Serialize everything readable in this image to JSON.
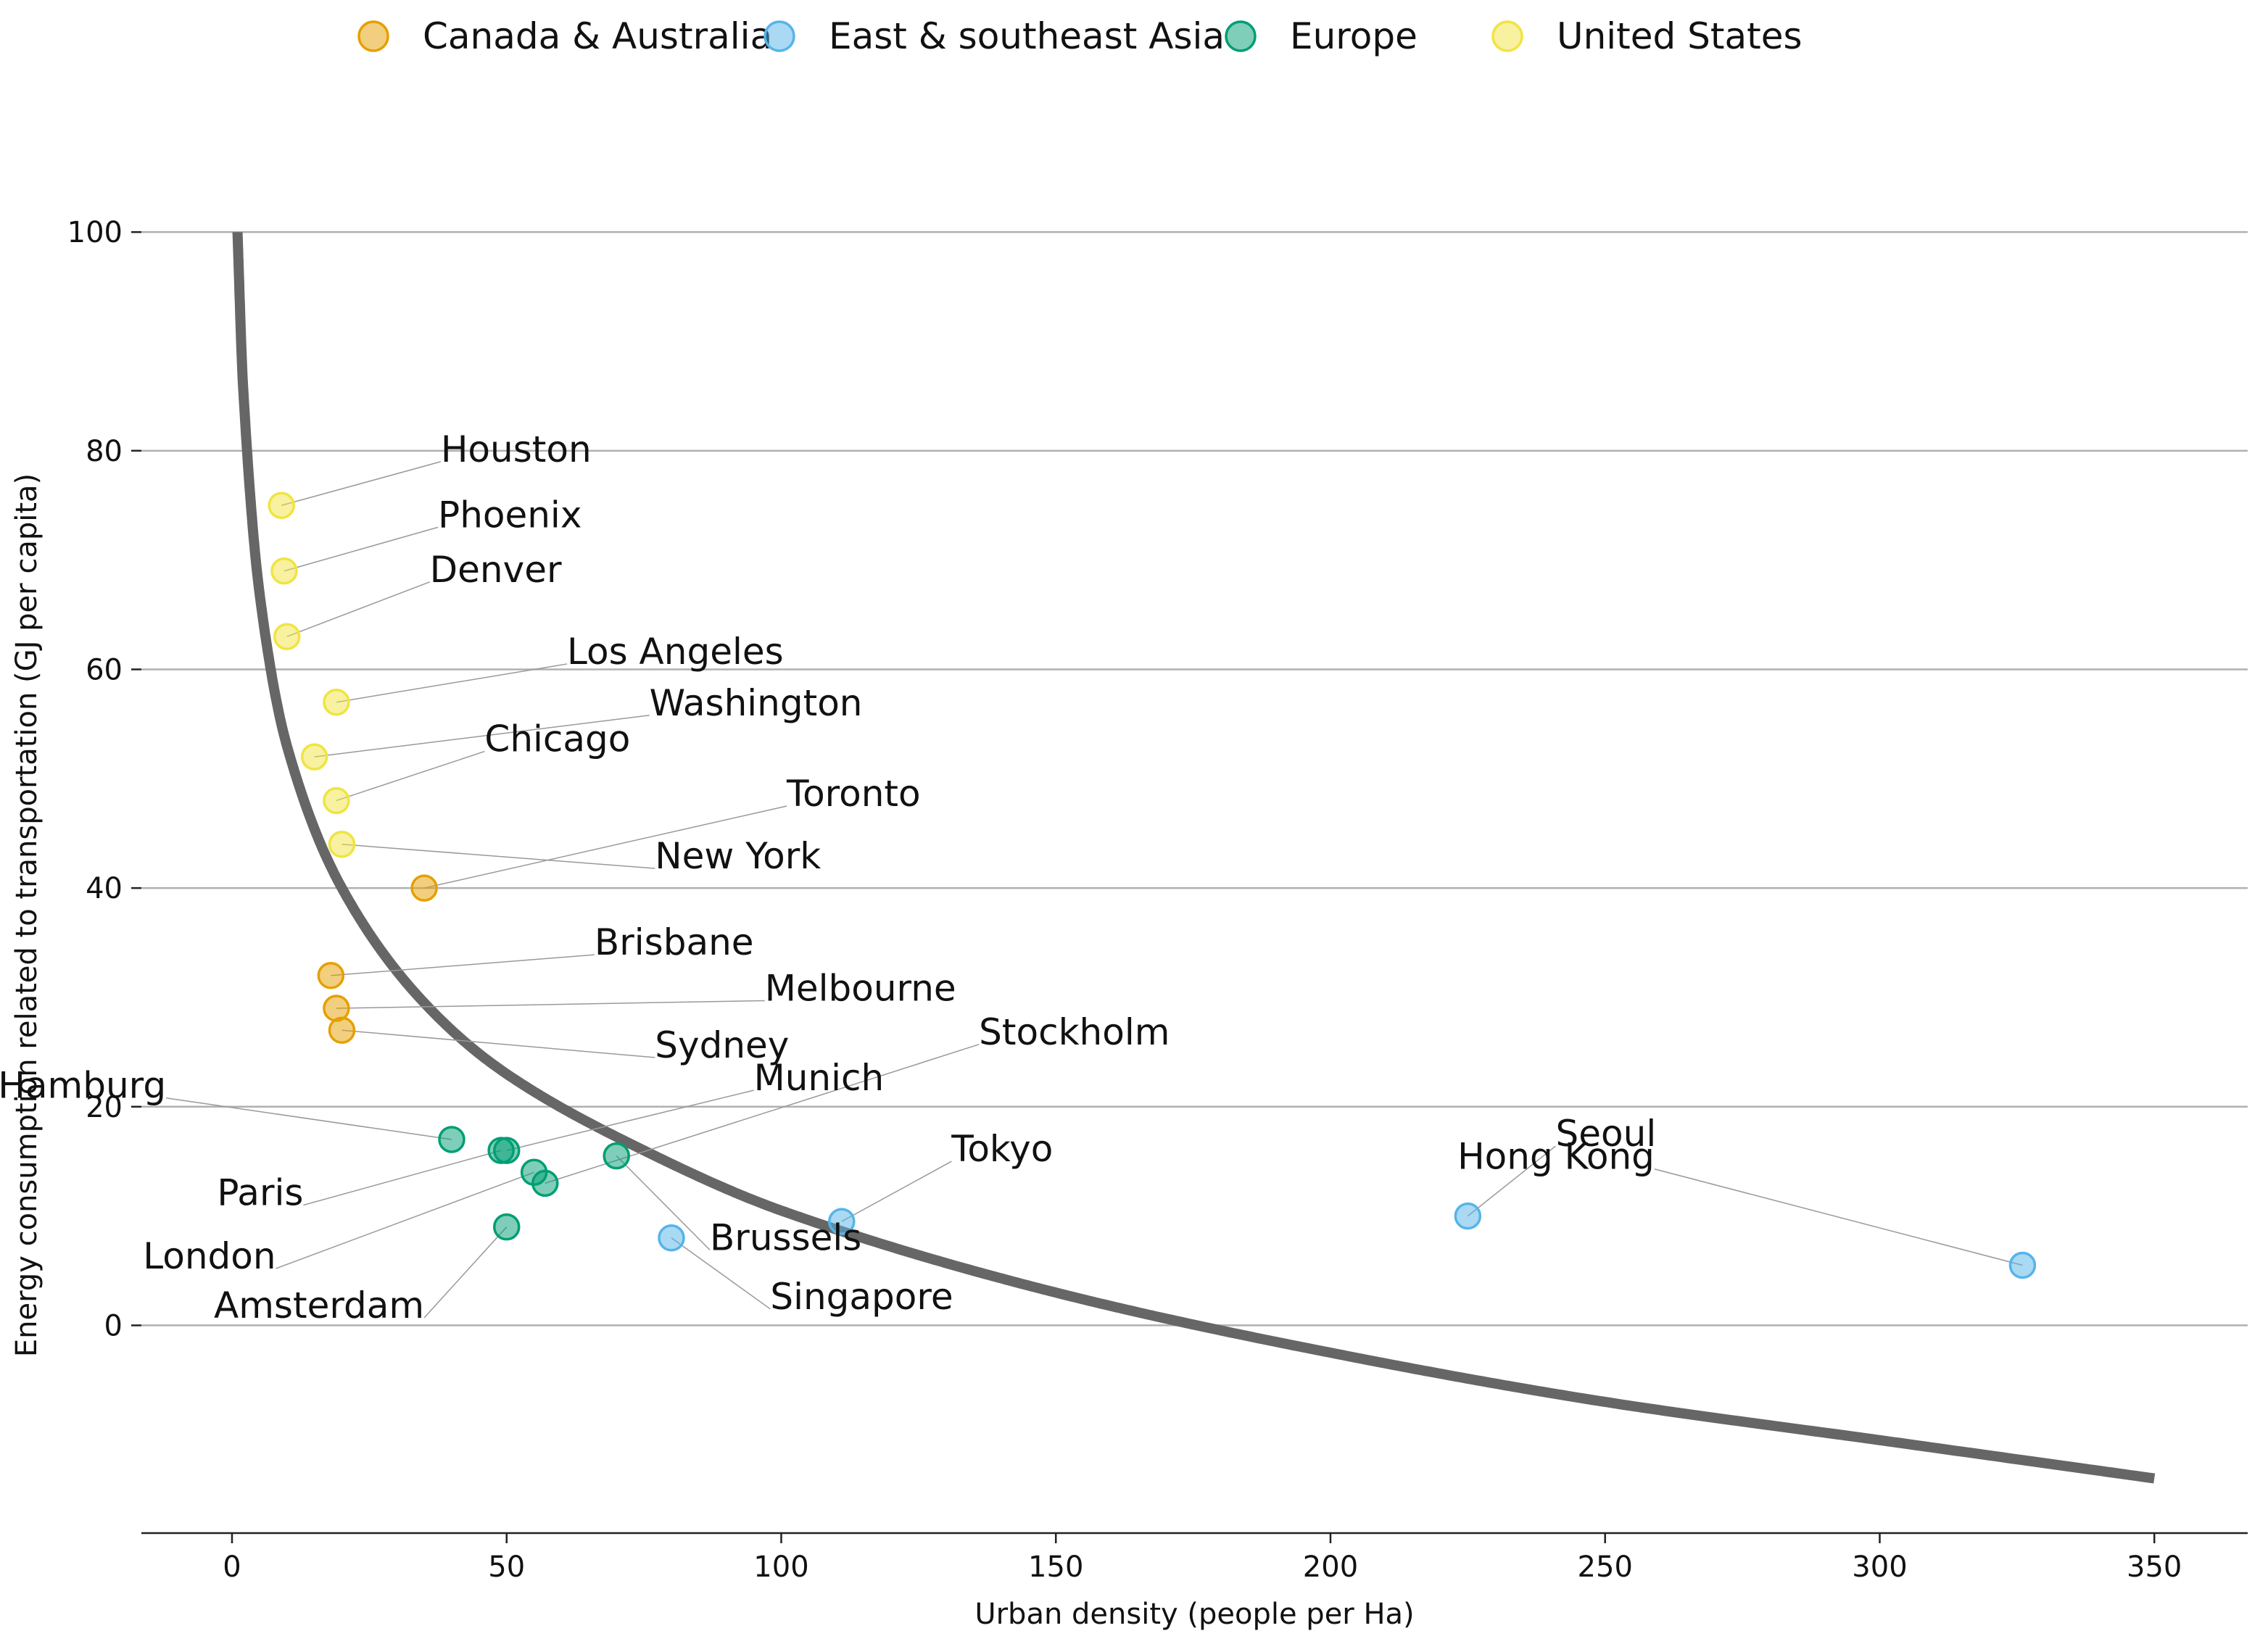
{
  "chart_data": {
    "type": "scatter",
    "title": "",
    "xlabel": "Urban density (people per Ha)",
    "ylabel": "Energy consumption related to transportation (GJ per capita)",
    "xlim": [
      -16.5,
      367
    ],
    "ylim": [
      -19,
      102
    ],
    "x_ticks": [
      0,
      50,
      100,
      150,
      200,
      250,
      300,
      350
    ],
    "y_ticks": [
      0,
      20,
      40,
      60,
      80,
      100
    ],
    "grid": "horizontal",
    "legend_position": "top",
    "legend": [
      {
        "name": "Canada & Australia",
        "color": "#E69F00"
      },
      {
        "name": "East & southeast Asia",
        "color": "#56B4E9"
      },
      {
        "name": "Europe",
        "color": "#009E73"
      },
      {
        "name": "United States",
        "color": "#F0E442"
      }
    ],
    "trend_curve": {
      "label": "fit",
      "color": "#666666",
      "points": [
        [
          1,
          100
        ],
        [
          2,
          86
        ],
        [
          5,
          67
        ],
        [
          10,
          53
        ],
        [
          20,
          40
        ],
        [
          35,
          29.5
        ],
        [
          50,
          23
        ],
        [
          75,
          16
        ],
        [
          100,
          10.5
        ],
        [
          150,
          3
        ],
        [
          200,
          -2.5
        ],
        [
          250,
          -7
        ],
        [
          300,
          -10.5
        ],
        [
          350,
          -14
        ]
      ]
    },
    "points": [
      {
        "city": "Houston",
        "group": "United States",
        "x": 9,
        "y": 75,
        "label_dx": 29,
        "label_dy": 4
      },
      {
        "city": "Phoenix",
        "group": "United States",
        "x": 9.5,
        "y": 69,
        "label_dx": 28,
        "label_dy": 4
      },
      {
        "city": "Denver",
        "group": "United States",
        "x": 10,
        "y": 63,
        "label_dx": 26,
        "label_dy": 5
      },
      {
        "city": "Los Angeles",
        "group": "United States",
        "x": 19,
        "y": 57,
        "label_dx": 42,
        "label_dy": 3.5
      },
      {
        "city": "Washington",
        "group": "United States",
        "x": 15,
        "y": 52,
        "label_dx": 61,
        "label_dy": 3.8
      },
      {
        "city": "Chicago",
        "group": "United States",
        "x": 19,
        "y": 48,
        "label_dx": 27,
        "label_dy": 4.5
      },
      {
        "city": "New York",
        "group": "United States",
        "x": 20,
        "y": 44,
        "label_dx": 57,
        "label_dy": -2.2
      },
      {
        "city": "Toronto",
        "group": "Canada & Australia",
        "x": 35,
        "y": 40,
        "label_dx": 66,
        "label_dy": 7.5
      },
      {
        "city": "Brisbane",
        "group": "Canada & Australia",
        "x": 18,
        "y": 32,
        "label_dx": 48,
        "label_dy": 1.9
      },
      {
        "city": "Melbourne",
        "group": "Canada & Australia",
        "x": 19,
        "y": 29,
        "label_dx": 78,
        "label_dy": 0.7
      },
      {
        "city": "Sydney",
        "group": "Canada & Australia",
        "x": 20,
        "y": 27,
        "label_dx": 57,
        "label_dy": -2.5
      },
      {
        "city": "Hamburg",
        "group": "Europe",
        "x": 40,
        "y": 17,
        "label_dx": -52,
        "label_dy": 3.8
      },
      {
        "city": "Paris",
        "group": "Europe",
        "x": 49,
        "y": 16,
        "label_dx": -36,
        "label_dy": -5
      },
      {
        "city": "Munich",
        "group": "Europe",
        "x": 50,
        "y": 16,
        "label_dx": 45,
        "label_dy": 5.5
      },
      {
        "city": "London",
        "group": "Europe",
        "x": 55,
        "y": 14,
        "label_dx": -47,
        "label_dy": -8.8
      },
      {
        "city": "Stockholm",
        "group": "Europe",
        "x": 57,
        "y": 13,
        "label_dx": 79,
        "label_dy": 12.7
      },
      {
        "city": "Amsterdam",
        "group": "Europe",
        "x": 50,
        "y": 9,
        "label_dx": -15,
        "label_dy": -8.3
      },
      {
        "city": "Brussels",
        "group": "Europe",
        "x": 70,
        "y": 15.5,
        "label_dx": 17,
        "label_dy": -8.6
      },
      {
        "city": "Singapore",
        "group": "East & southeast Asia",
        "x": 80,
        "y": 8,
        "label_dx": 18,
        "label_dy": -6.5
      },
      {
        "city": "Tokyo",
        "group": "East & southeast Asia",
        "x": 111,
        "y": 9.5,
        "label_dx": 20,
        "label_dy": 5.5
      },
      {
        "city": "Seoul",
        "group": "East & southeast Asia",
        "x": 225,
        "y": 10,
        "label_dx": 16,
        "label_dy": 6.4
      },
      {
        "city": "Hong Kong",
        "group": "East & southeast Asia",
        "x": 326,
        "y": 5.5,
        "label_dx": -67,
        "label_dy": 8.8
      }
    ]
  }
}
